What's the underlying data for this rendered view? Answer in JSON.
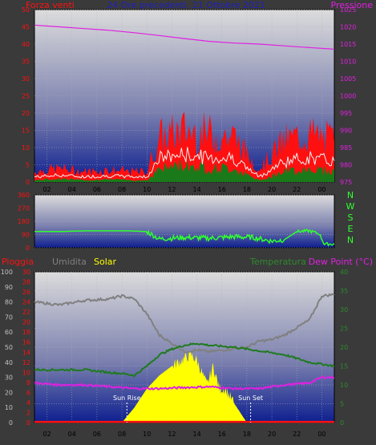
{
  "window": {
    "title": "24 Ore precedenti, 21 Ottobre 2021"
  },
  "colors": {
    "background": "#3a3a3a",
    "wind": "#ff1010",
    "gust": "#ff1010",
    "wind_avg": "#f0f0f0",
    "wind_green": "#1a7a1a",
    "pressure": "#e020e0",
    "direction": "#30ff30",
    "rain": "#ff1010",
    "humidity": "#808080",
    "solar": "#ffff00",
    "temperature": "#207a20",
    "dew_point": "#e020e0",
    "sun_event": "#ffffff"
  },
  "chart_data": [
    {
      "type": "line",
      "panel": "wind",
      "title": "24 Ore precedenti, 21 Ottobre 2021",
      "left_label": "Forza venti",
      "right_label": "Pressione",
      "x_ticks": [
        "02",
        "04",
        "06",
        "08",
        "10",
        "12",
        "14",
        "16",
        "18",
        "20",
        "22",
        "00"
      ],
      "ylim_left": [
        0,
        50
      ],
      "ylim_right": [
        975,
        1025
      ],
      "y_left_ticks": [
        0,
        5,
        10,
        15,
        20,
        25,
        30,
        35,
        40,
        45,
        50
      ],
      "y_right_ticks": [
        975,
        980,
        985,
        990,
        995,
        1000,
        1005,
        1010,
        1015,
        1020,
        1025
      ],
      "grid": true,
      "series": [
        {
          "name": "Pressione",
          "axis": "right",
          "x_hours": [
            0,
            2,
            4,
            6,
            8,
            10,
            12,
            14,
            16,
            18,
            20,
            22,
            24
          ],
          "values": [
            1020.5,
            1020.0,
            1019.5,
            1019.0,
            1018.3,
            1017.5,
            1016.6,
            1015.8,
            1015.3,
            1015.0,
            1014.5,
            1014.0,
            1013.5
          ]
        }
      ],
      "wind_profile": {
        "x_hours": [
          0,
          2,
          4,
          6,
          8,
          9,
          10,
          12,
          14,
          16,
          17,
          18,
          20,
          22,
          24
        ],
        "gust": [
          3,
          4,
          3,
          3.5,
          3,
          3,
          13,
          15,
          14,
          13,
          8,
          4,
          12,
          14,
          12
        ],
        "average": [
          1.5,
          2,
          1.5,
          1.8,
          1.5,
          1.5,
          7,
          8,
          7,
          7,
          4,
          1.5,
          6,
          7,
          6
        ],
        "green": [
          0.5,
          1,
          0.5,
          0.8,
          0.5,
          0.5,
          4,
          5,
          4,
          4,
          2,
          0.5,
          3,
          4,
          3
        ]
      }
    },
    {
      "type": "line",
      "panel": "direction",
      "right_label": "NWSEN",
      "y_ticks": [
        0,
        90,
        180,
        270,
        360
      ],
      "ylim": [
        0,
        360
      ],
      "series": [
        {
          "name": "",
          "x_hours": [
            0,
            2,
            4,
            6,
            7.5,
            9,
            10,
            12,
            14,
            16,
            17.5,
            19,
            20,
            21,
            22,
            22.8,
            23.2,
            24
          ],
          "values": [
            110,
            110,
            115,
            115,
            115,
            110,
            60,
            70,
            65,
            75,
            70,
            45,
            55,
            110,
            115,
            95,
            25,
            25
          ]
        }
      ]
    },
    {
      "type": "line",
      "panel": "weather",
      "legend": [
        "Pioggia",
        "Umidita",
        "Solar",
        "Temperatura",
        "Dew Point (°C)"
      ],
      "y_left_outer_ticks": [
        0,
        10,
        20,
        30,
        40,
        50,
        60,
        70,
        80,
        90,
        100
      ],
      "y_left_inner_ticks": [
        0,
        2,
        4,
        6,
        8,
        10,
        12,
        14,
        16,
        18,
        20,
        22,
        24,
        26,
        28,
        30
      ],
      "y_right_ticks": [
        0,
        5,
        10,
        15,
        20,
        25,
        30,
        35,
        40
      ],
      "ylim_temperature": [
        0,
        40
      ],
      "ylim_humidity": [
        0,
        100
      ],
      "series": [
        {
          "name": "Umidita",
          "axis": "humidity",
          "x_hours": [
            0,
            1,
            2,
            4,
            6,
            7,
            8,
            9,
            10,
            12,
            13,
            14,
            16,
            17,
            18,
            19,
            20,
            22,
            23,
            24
          ],
          "values": [
            80,
            79,
            78,
            81,
            82,
            84,
            82,
            72,
            58,
            47,
            48,
            47,
            49,
            50,
            54,
            55,
            58,
            68,
            84,
            85
          ]
        },
        {
          "name": "Temperatura",
          "axis": "temperature",
          "x_hours": [
            0,
            2,
            4,
            6,
            7,
            8,
            9,
            10,
            11,
            12,
            13,
            14,
            16,
            17,
            18,
            20,
            22,
            24
          ],
          "values": [
            14,
            14,
            14,
            13.3,
            13,
            12.5,
            15,
            18,
            19.5,
            20.5,
            21,
            20.5,
            20,
            19.5,
            19,
            18,
            16,
            15
          ]
        },
        {
          "name": "Dew Point",
          "axis": "temperature",
          "x_hours": [
            0,
            2,
            4,
            6,
            8,
            10,
            12,
            14,
            16,
            18,
            20,
            22,
            23,
            24
          ],
          "values": [
            10.5,
            10,
            10,
            9.5,
            9,
            9,
            9.3,
            9.5,
            9,
            9,
            10,
            10.5,
            12,
            12
          ]
        },
        {
          "name": "Pioggia",
          "axis": "temperature",
          "x_hours": [
            0,
            24
          ],
          "values": [
            0.2,
            0.2
          ]
        }
      ],
      "solar_profile": {
        "x_hours": [
          7,
          8,
          9,
          10,
          11,
          12,
          12.5,
          13,
          13.8,
          14.3,
          14.8,
          15.3,
          16,
          17
        ],
        "values": [
          0,
          4,
          9,
          12.5,
          15,
          17,
          18,
          16.5,
          10,
          15,
          9,
          9,
          5,
          0
        ]
      },
      "annotations": [
        {
          "text": "Sun Rise",
          "x_hour": 7.4
        },
        {
          "text": "Sun Set",
          "x_hour": 17.3
        }
      ]
    }
  ]
}
